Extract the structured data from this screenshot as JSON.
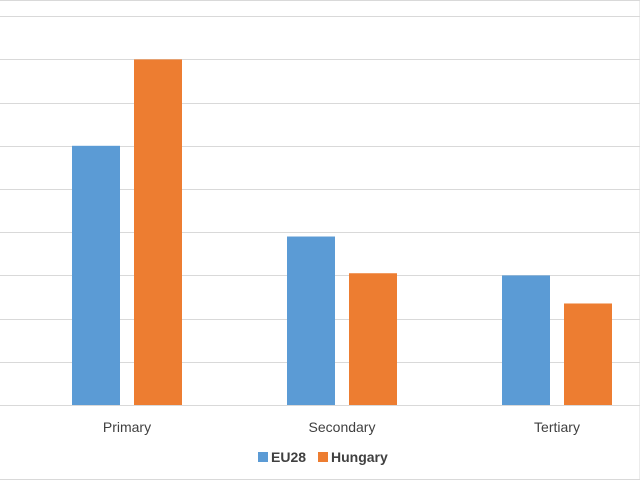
{
  "chart_data": {
    "type": "bar",
    "categories": [
      "Primary",
      "Secondary",
      "Tertiary"
    ],
    "series": [
      {
        "name": "EU28",
        "color": "#5b9bd5",
        "values": [
          6.0,
          3.9,
          3.0
        ]
      },
      {
        "name": "Hungary",
        "color": "#ed7d31",
        "values": [
          8.0,
          3.05,
          2.35
        ]
      }
    ],
    "ylim": [
      0,
      9.5
    ],
    "yticks": [
      0,
      1,
      2,
      3,
      4,
      5,
      6,
      7,
      8,
      9
    ],
    "grid": true,
    "legend_position": "bottom"
  }
}
